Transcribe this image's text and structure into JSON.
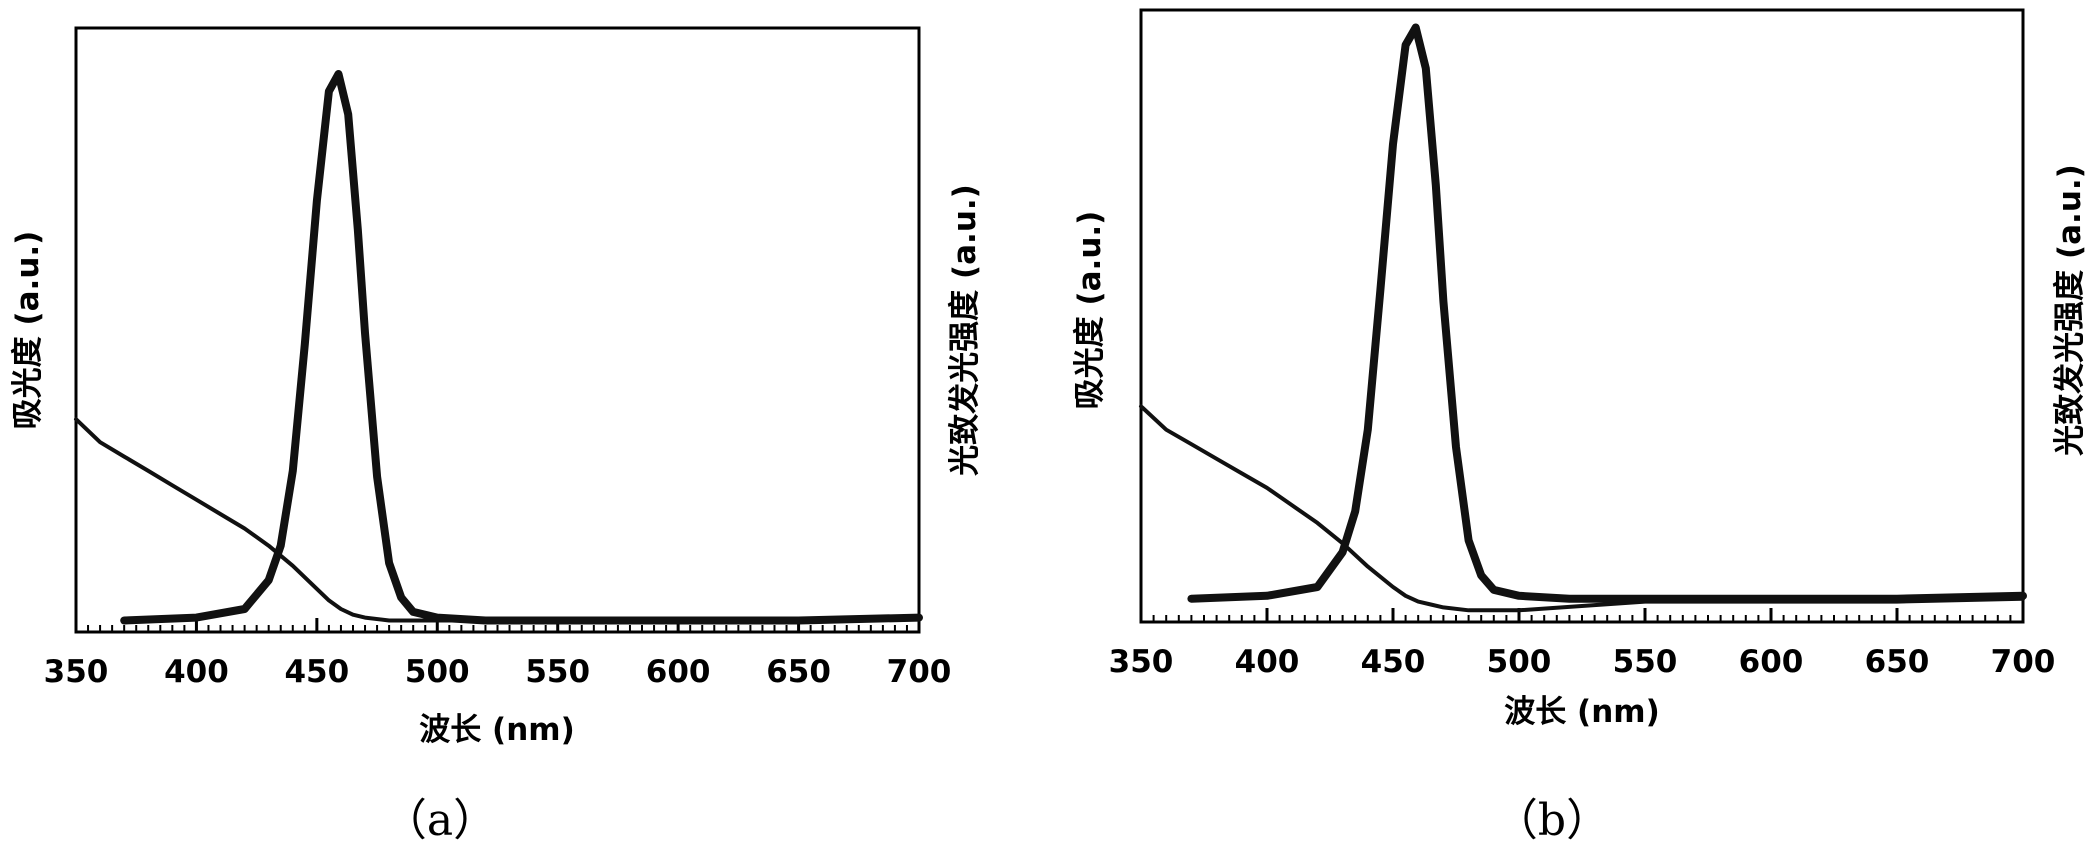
{
  "chart_data": [
    {
      "type": "line",
      "panel_label": "（a）",
      "xlabel": "波长 (nm)",
      "ylabel_left": "吸光度 (a.u.)",
      "ylabel_right": "光致发光强度 (a.u.)",
      "xlim": [
        350,
        700
      ],
      "ylim": [
        0,
        1.05
      ],
      "x_ticks": [
        "350",
        "400",
        "450",
        "500",
        "550",
        "600",
        "650",
        "700"
      ],
      "x_tick_values": [
        350,
        400,
        450,
        500,
        550,
        600,
        650,
        700
      ],
      "y_ticks_shown": false,
      "series": [
        {
          "kind": "absorbance",
          "x": [
            350,
            360,
            370,
            380,
            390,
            400,
            410,
            420,
            430,
            440,
            450,
            455,
            460,
            465,
            470,
            480,
            500,
            550,
            600,
            650,
            700
          ],
          "y": [
            0.37,
            0.33,
            0.305,
            0.28,
            0.255,
            0.23,
            0.205,
            0.18,
            0.15,
            0.115,
            0.075,
            0.055,
            0.04,
            0.03,
            0.025,
            0.02,
            0.02,
            0.02,
            0.02,
            0.02,
            0.025
          ]
        },
        {
          "kind": "photoluminescence",
          "x": [
            370,
            400,
            420,
            430,
            435,
            440,
            445,
            450,
            455,
            459,
            463,
            467,
            470,
            475,
            480,
            485,
            490,
            500,
            520,
            550,
            600,
            650,
            700
          ],
          "y": [
            0.02,
            0.025,
            0.04,
            0.09,
            0.15,
            0.28,
            0.5,
            0.75,
            0.94,
            0.97,
            0.9,
            0.7,
            0.52,
            0.27,
            0.12,
            0.06,
            0.035,
            0.025,
            0.02,
            0.02,
            0.02,
            0.02,
            0.025
          ]
        }
      ]
    },
    {
      "type": "line",
      "panel_label": "（b）",
      "xlabel": "波长 (nm)",
      "ylabel_left": "吸光度 (a.u.)",
      "ylabel_right": "光致发光强度 (a.u.)",
      "xlim": [
        350,
        700
      ],
      "ylim": [
        0,
        1.05
      ],
      "x_ticks": [
        "350",
        "400",
        "450",
        "500",
        "550",
        "600",
        "650",
        "700"
      ],
      "x_tick_values": [
        350,
        400,
        450,
        500,
        550,
        600,
        650,
        700
      ],
      "y_ticks_shown": false,
      "series": [
        {
          "kind": "absorbance",
          "x": [
            350,
            360,
            370,
            380,
            390,
            400,
            410,
            420,
            430,
            440,
            450,
            455,
            460,
            465,
            470,
            480,
            500,
            550,
            600,
            650,
            700
          ],
          "y": [
            0.37,
            0.33,
            0.305,
            0.28,
            0.255,
            0.23,
            0.2,
            0.17,
            0.135,
            0.095,
            0.06,
            0.045,
            0.035,
            0.03,
            0.025,
            0.02,
            0.02,
            0.035,
            0.035,
            0.035,
            0.04
          ]
        },
        {
          "kind": "photoluminescence",
          "x": [
            370,
            400,
            420,
            430,
            435,
            440,
            445,
            450,
            455,
            459,
            463,
            467,
            470,
            475,
            480,
            485,
            490,
            500,
            520,
            550,
            600,
            650,
            700
          ],
          "y": [
            0.04,
            0.045,
            0.06,
            0.12,
            0.19,
            0.33,
            0.57,
            0.82,
            0.99,
            1.02,
            0.95,
            0.75,
            0.55,
            0.3,
            0.14,
            0.08,
            0.055,
            0.045,
            0.04,
            0.04,
            0.04,
            0.04,
            0.045
          ]
        }
      ]
    }
  ]
}
